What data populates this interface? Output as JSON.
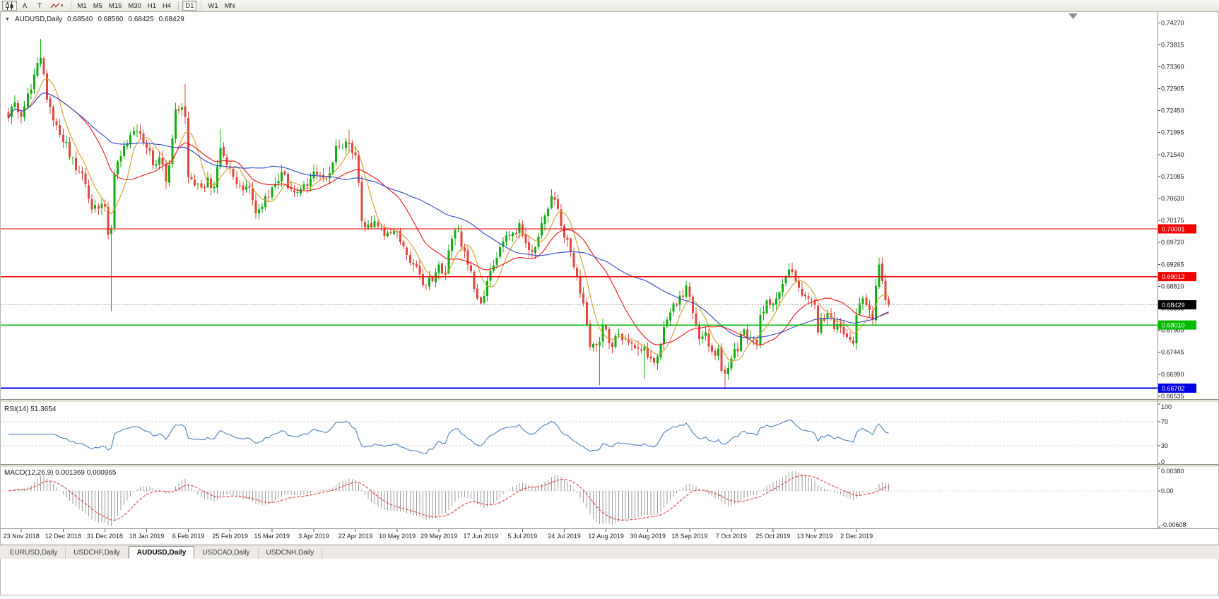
{
  "toolbar": {
    "chart_mode_icon": "candlestick-icon",
    "tools": [
      {
        "label": "A",
        "name": "text-label-tool"
      },
      {
        "label": "T",
        "name": "text-tool"
      }
    ],
    "indicator_dropdown_icon": "zigzag-icon",
    "dropdown_caret": "▾",
    "timeframes": [
      "M1",
      "M5",
      "M15",
      "M30",
      "H1",
      "H4",
      "D1",
      "W1",
      "MN"
    ],
    "active_timeframe": "D1"
  },
  "chart_header": {
    "symbol": "AUDUSD,Daily",
    "open": "0.68540",
    "high": "0.68560",
    "low": "0.68425",
    "close": "0.68429"
  },
  "indicators": {
    "rsi_label": "RSI(14) 51.3654",
    "macd_label": "MACD(12,26,9) 0.001369 0.000965"
  },
  "tabs": [
    {
      "label": "EURUSD,Daily",
      "active": false
    },
    {
      "label": "USDCHF,Daily",
      "active": false
    },
    {
      "label": "AUDUSD,Daily",
      "active": true
    },
    {
      "label": "USDCAD,Daily",
      "active": false
    },
    {
      "label": "USDCNH,Daily",
      "active": false
    }
  ],
  "chart_data": {
    "type": "candlestick",
    "title": "AUDUSD,Daily",
    "symbol": "AUDUSD",
    "timeframe": "Daily",
    "ylim": [
      0.6649,
      0.7442
    ],
    "num_candles": 275,
    "bars_per_x_tick": 13,
    "first_x_tick_bar": 4,
    "current_price": 0.68429,
    "current_price_label": "0.68429",
    "candle_up_color": "#0faf0f",
    "candle_down_color": "#e2473c",
    "y_tick_labels": [
      "0.74270",
      "0.73815",
      "0.73360",
      "0.72905",
      "0.72450",
      "0.71995",
      "0.71540",
      "0.71085",
      "0.70630",
      "0.70175",
      "0.69720",
      "0.69265",
      "0.68810",
      "0.68355",
      "0.67900",
      "0.67445",
      "0.66990",
      "0.66535"
    ],
    "x_tick_labels": [
      "23 Nov 2018",
      "12 Dec 2018",
      "31 Dec 2018",
      "18 Jan 2019",
      "6 Feb 2019",
      "25 Feb 2019",
      "15 Mar 2019",
      "3 Apr 2019",
      "22 Apr 2019",
      "10 May 2019",
      "29 May 2019",
      "17 Jun 2019",
      "5 Jul 2019",
      "24 Jul 2019",
      "12 Aug 2019",
      "30 Aug 2019",
      "18 Sep 2019",
      "7 Oct 2019",
      "25 Oct 2019",
      "13 Nov 2019",
      "2 Dec 2019"
    ],
    "horizontal_lines": [
      {
        "price": 0.70001,
        "label": "0.70001",
        "color": "#f20000",
        "width": 1.4,
        "name": "resistance-line-070001"
      },
      {
        "price": 0.69012,
        "label": "0.69012",
        "color": "#f20000",
        "width": 1.4,
        "name": "resistance-line-069012"
      },
      {
        "price": 0.6801,
        "label": "0.68010",
        "color": "#00bb00",
        "width": 1.7,
        "name": "support-line-068010"
      },
      {
        "price": 0.66702,
        "label": "0.66702",
        "color": "#0000e6",
        "width": 2.2,
        "name": "support-line-066702"
      }
    ],
    "moving_averages": [
      {
        "period": 7,
        "color": "#d79b2b"
      },
      {
        "period": 21,
        "color": "#f01414"
      },
      {
        "period": 50,
        "color": "#2e49c8"
      }
    ],
    "close_anchors": [
      [
        0,
        0.723
      ],
      [
        2,
        0.7262
      ],
      [
        4,
        0.7232
      ],
      [
        6,
        0.728
      ],
      [
        8,
        0.732
      ],
      [
        10,
        0.7355
      ],
      [
        12,
        0.7268
      ],
      [
        14,
        0.7225
      ],
      [
        17,
        0.718
      ],
      [
        20,
        0.7148
      ],
      [
        22,
        0.712
      ],
      [
        24,
        0.7092
      ],
      [
        26,
        0.704
      ],
      [
        28,
        0.7042
      ],
      [
        30,
        0.7046
      ],
      [
        31,
        0.6988
      ],
      [
        32,
        0.7
      ],
      [
        33,
        0.7113
      ],
      [
        34,
        0.714
      ],
      [
        36,
        0.7172
      ],
      [
        38,
        0.7195
      ],
      [
        40,
        0.7202
      ],
      [
        43,
        0.7168
      ],
      [
        45,
        0.7132
      ],
      [
        47,
        0.7148
      ],
      [
        49,
        0.7098
      ],
      [
        51,
        0.7188
      ],
      [
        52,
        0.7248
      ],
      [
        54,
        0.7252
      ],
      [
        55,
        0.7232
      ],
      [
        56,
        0.7108
      ],
      [
        58,
        0.709
      ],
      [
        60,
        0.7086
      ],
      [
        62,
        0.7106
      ],
      [
        64,
        0.7088
      ],
      [
        66,
        0.7168
      ],
      [
        68,
        0.7132
      ],
      [
        69,
        0.7126
      ],
      [
        71,
        0.7092
      ],
      [
        73,
        0.708
      ],
      [
        75,
        0.7086
      ],
      [
        77,
        0.7032
      ],
      [
        79,
        0.7046
      ],
      [
        81,
        0.7066
      ],
      [
        82,
        0.7086
      ],
      [
        84,
        0.71
      ],
      [
        86,
        0.7112
      ],
      [
        88,
        0.7082
      ],
      [
        90,
        0.7076
      ],
      [
        92,
        0.7092
      ],
      [
        94,
        0.7104
      ],
      [
        96,
        0.7112
      ],
      [
        98,
        0.7106
      ],
      [
        100,
        0.7116
      ],
      [
        102,
        0.7172
      ],
      [
        104,
        0.717
      ],
      [
        106,
        0.7176
      ],
      [
        108,
        0.7152
      ],
      [
        109,
        0.7096
      ],
      [
        110,
        0.7016
      ],
      [
        112,
        0.701
      ],
      [
        114,
        0.7016
      ],
      [
        116,
        0.7002
      ],
      [
        118,
        0.6992
      ],
      [
        120,
        0.6996
      ],
      [
        122,
        0.6972
      ],
      [
        124,
        0.6946
      ],
      [
        126,
        0.6926
      ],
      [
        128,
        0.6906
      ],
      [
        130,
        0.6882
      ],
      [
        132,
        0.6892
      ],
      [
        134,
        0.6926
      ],
      [
        136,
        0.6906
      ],
      [
        138,
        0.698
      ],
      [
        140,
        0.6996
      ],
      [
        141,
        0.6962
      ],
      [
        143,
        0.6926
      ],
      [
        145,
        0.6876
      ],
      [
        147,
        0.6846
      ],
      [
        149,
        0.6892
      ],
      [
        151,
        0.6924
      ],
      [
        153,
        0.6962
      ],
      [
        155,
        0.6986
      ],
      [
        157,
        0.6992
      ],
      [
        159,
        0.7012
      ],
      [
        160,
        0.6986
      ],
      [
        162,
        0.6956
      ],
      [
        164,
        0.6962
      ],
      [
        166,
        0.7012
      ],
      [
        168,
        0.7042
      ],
      [
        169,
        0.7068
      ],
      [
        171,
        0.7042
      ],
      [
        173,
        0.6982
      ],
      [
        175,
        0.6952
      ],
      [
        177,
        0.6902
      ],
      [
        179,
        0.6846
      ],
      [
        180,
        0.6802
      ],
      [
        181,
        0.6756
      ],
      [
        182,
        0.6762
      ],
      [
        184,
        0.6766
      ],
      [
        185,
        0.6802
      ],
      [
        186,
        0.6792
      ],
      [
        188,
        0.6756
      ],
      [
        190,
        0.6782
      ],
      [
        192,
        0.6772
      ],
      [
        194,
        0.6762
      ],
      [
        196,
        0.6752
      ],
      [
        198,
        0.6756
      ],
      [
        200,
        0.6732
      ],
      [
        202,
        0.6736
      ],
      [
        203,
        0.6762
      ],
      [
        205,
        0.6812
      ],
      [
        207,
        0.6846
      ],
      [
        209,
        0.6862
      ],
      [
        211,
        0.6882
      ],
      [
        213,
        0.6826
      ],
      [
        215,
        0.6772
      ],
      [
        217,
        0.6786
      ],
      [
        219,
        0.6746
      ],
      [
        221,
        0.6752
      ],
      [
        222,
        0.6706
      ],
      [
        223,
        0.67
      ],
      [
        225,
        0.6732
      ],
      [
        227,
        0.6746
      ],
      [
        229,
        0.6792
      ],
      [
        231,
        0.6776
      ],
      [
        233,
        0.6762
      ],
      [
        234,
        0.6822
      ],
      [
        236,
        0.6852
      ],
      [
        238,
        0.6846
      ],
      [
        239,
        0.6856
      ],
      [
        241,
        0.6886
      ],
      [
        243,
        0.6916
      ],
      [
        245,
        0.6892
      ],
      [
        247,
        0.6862
      ],
      [
        249,
        0.6856
      ],
      [
        251,
        0.6842
      ],
      [
        252,
        0.6786
      ],
      [
        253,
        0.6816
      ],
      [
        255,
        0.6826
      ],
      [
        257,
        0.6792
      ],
      [
        259,
        0.6796
      ],
      [
        261,
        0.6776
      ],
      [
        263,
        0.6762
      ],
      [
        264,
        0.6822
      ],
      [
        265,
        0.6846
      ],
      [
        266,
        0.6856
      ],
      [
        267,
        0.6842
      ],
      [
        268,
        0.6832
      ],
      [
        269,
        0.6812
      ],
      [
        270,
        0.6882
      ],
      [
        271,
        0.6926
      ],
      [
        272,
        0.6892
      ],
      [
        273,
        0.6852
      ],
      [
        274,
        0.68429
      ]
    ],
    "wick_overrides": [
      {
        "i": 10,
        "high": 0.7394
      },
      {
        "i": 32,
        "low": 0.683
      },
      {
        "i": 55,
        "high": 0.73
      },
      {
        "i": 66,
        "high": 0.7207
      },
      {
        "i": 106,
        "high": 0.7206
      },
      {
        "i": 169,
        "high": 0.7082
      },
      {
        "i": 184,
        "low": 0.6677
      },
      {
        "i": 198,
        "low": 0.6689
      },
      {
        "i": 223,
        "low": 0.667
      },
      {
        "i": 243,
        "high": 0.693
      },
      {
        "i": 271,
        "high": 0.694
      }
    ],
    "rsi": {
      "period": 14,
      "current": 51.3654,
      "line_color": "#4a7fc0",
      "range": [
        0,
        100
      ],
      "levels": [
        {
          "label": "100",
          "value": 100,
          "dotted": false
        },
        {
          "label": "70",
          "value": 70,
          "dotted": true
        },
        {
          "label": "30",
          "value": 30,
          "dotted": true
        },
        {
          "label": "0",
          "value": 0,
          "dotted": false
        }
      ]
    },
    "macd": {
      "fast": 12,
      "slow": 26,
      "signal_period": 9,
      "current_macd": 0.001369,
      "current_signal": 0.000965,
      "histogram_color": "#999999",
      "signal_color": "#e03030",
      "range": [
        -0.00608,
        0.0038
      ],
      "scale_labels": [
        {
          "label": "0.00380",
          "value": 0.0038
        },
        {
          "label": "0.00",
          "value": 0
        },
        {
          "label": "-0.00608",
          "value": -0.00608
        }
      ]
    }
  }
}
